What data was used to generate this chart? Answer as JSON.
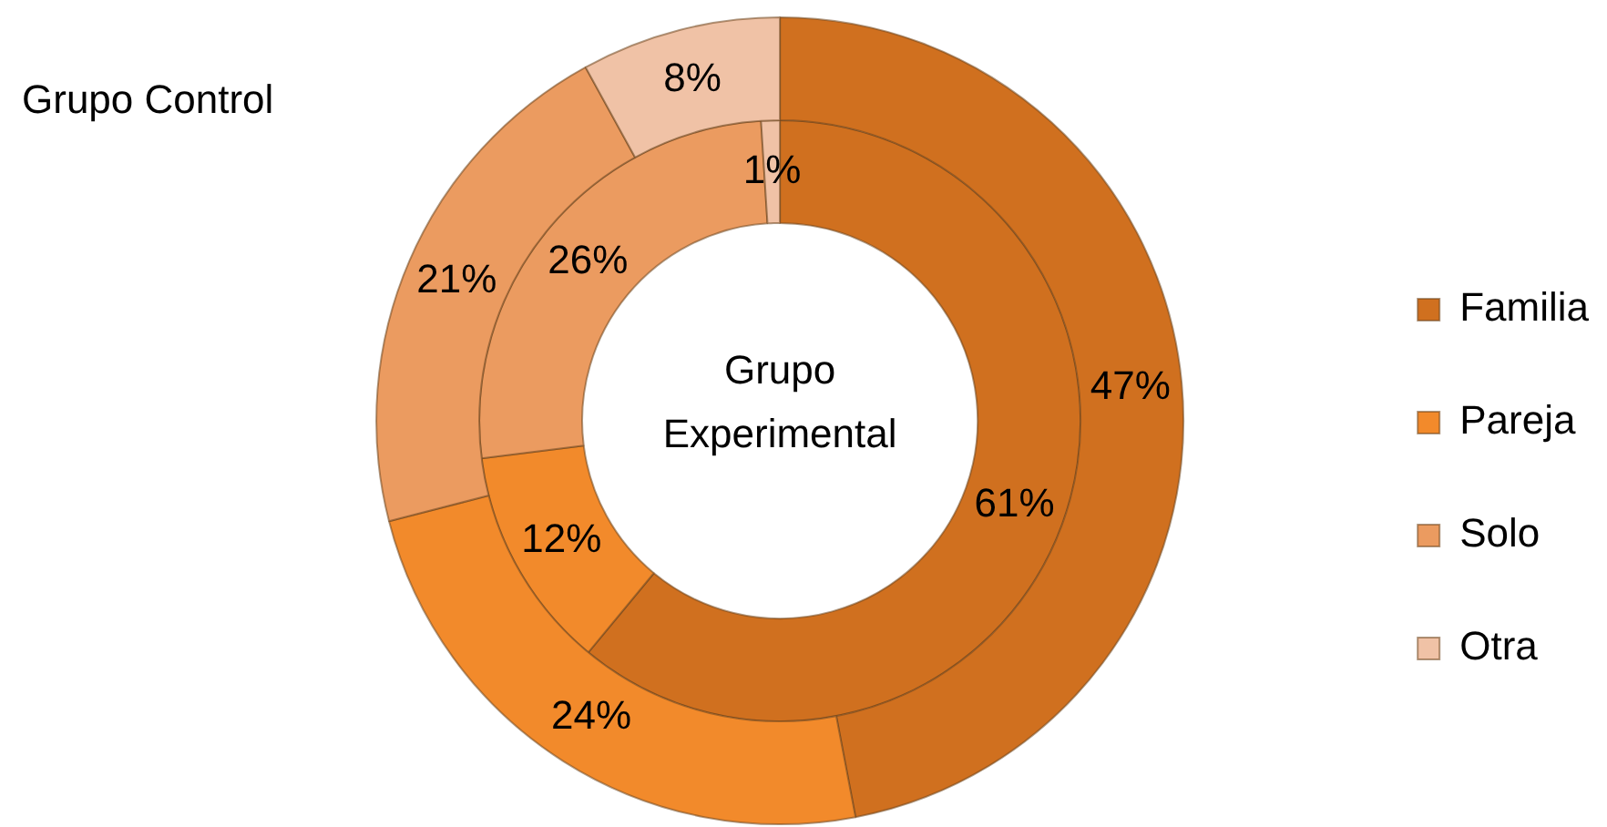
{
  "chart_data": {
    "type": "donut",
    "categories": [
      "Familia",
      "Pareja",
      "Solo",
      "Otra"
    ],
    "colors": [
      "#d0701f",
      "#f28a2b",
      "#eb9b60",
      "#f0c2a6"
    ],
    "series": [
      {
        "name": "Grupo Control",
        "values": [
          47,
          24,
          21,
          8
        ],
        "value_labels": [
          "47%",
          "24%",
          "21%",
          "8%"
        ]
      },
      {
        "name": "Grupo Experimental",
        "values": [
          61,
          12,
          26,
          1
        ],
        "value_labels": [
          "61%",
          "12%",
          "26%",
          "1%"
        ]
      }
    ],
    "legend": "right"
  }
}
